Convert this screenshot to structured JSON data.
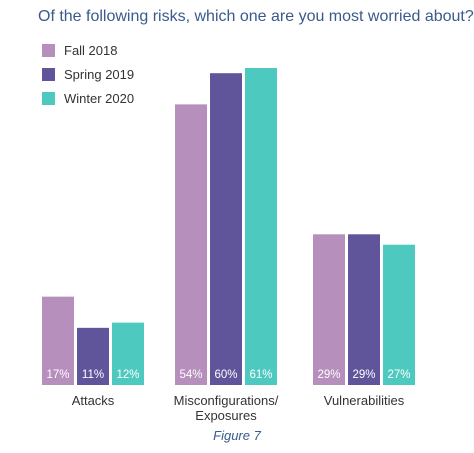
{
  "chart_data": {
    "type": "bar",
    "title": "Of the following risks, which one are you most worried about?",
    "categories": [
      [
        "Attacks"
      ],
      [
        "Misconfigurations/",
        "Exposures"
      ],
      [
        "Vulnerabilities"
      ]
    ],
    "series": [
      {
        "name": "Fall 2018",
        "color": "#b68fbd",
        "values": [
          17,
          54,
          29
        ],
        "labels": [
          "17%",
          "54%",
          "29%"
        ]
      },
      {
        "name": "Spring 2019",
        "color": "#60559b",
        "values": [
          11,
          60,
          29
        ],
        "labels": [
          "11%",
          "60%",
          "29%"
        ]
      },
      {
        "name": "Winter 2020",
        "color": "#4ec9c0",
        "values": [
          12,
          61,
          27
        ],
        "labels": [
          "12%",
          "61%",
          "27%"
        ]
      }
    ],
    "ylim": [
      0,
      61
    ],
    "grid": false,
    "legend_position": "top-left"
  },
  "caption": "Figure 7"
}
